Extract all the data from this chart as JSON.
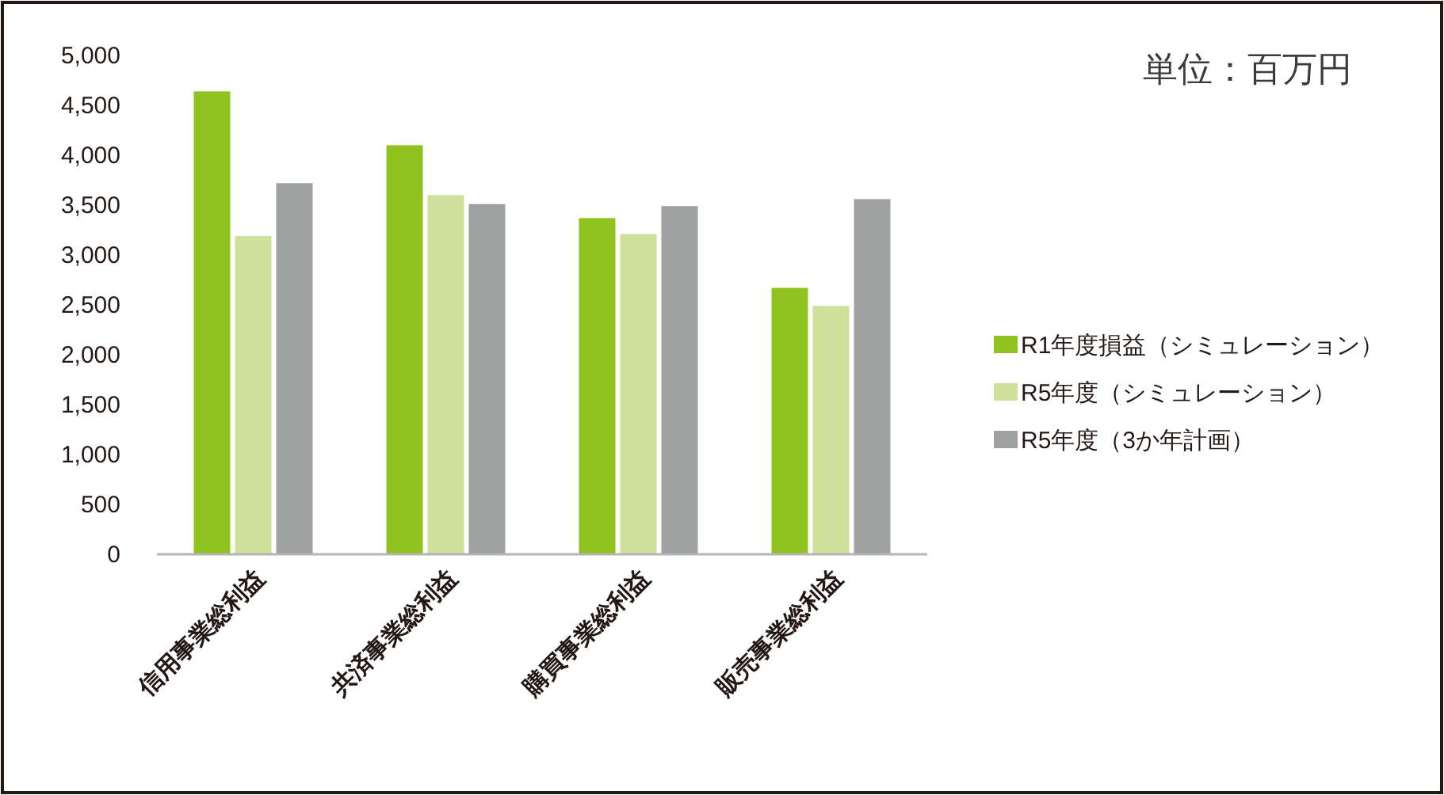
{
  "chart_data": {
    "type": "bar",
    "categories": [
      "信用事業総利益",
      "共済事業総利益",
      "購買事業総利益",
      "販売事業総利益"
    ],
    "series": [
      {
        "name": "R1年度損益（シミュレーション）",
        "color": "#8fc31f",
        "values": [
          4640,
          4100,
          3370,
          2670
        ]
      },
      {
        "name": "R5年度（シミュレーション）",
        "color": "#cde19a",
        "values": [
          3190,
          3600,
          3210,
          2490
        ]
      },
      {
        "name": "R5年度（3か年計画）",
        "color": "#9fa0a0",
        "values": [
          3720,
          3510,
          3490,
          3560
        ]
      }
    ],
    "ylim": [
      0,
      5000
    ],
    "yticks": [
      {
        "value": 0,
        "label": "0"
      },
      {
        "value": 500,
        "label": "500"
      },
      {
        "value": 1000,
        "label": "1,000"
      },
      {
        "value": 1500,
        "label": "1,500"
      },
      {
        "value": 2000,
        "label": "2,000"
      },
      {
        "value": 2500,
        "label": "2,500"
      },
      {
        "value": 3000,
        "label": "3,000"
      },
      {
        "value": 3500,
        "label": "3,500"
      },
      {
        "value": 4000,
        "label": "4,000"
      },
      {
        "value": 4500,
        "label": "4,500"
      },
      {
        "value": 5000,
        "label": "5,000"
      }
    ],
    "annotations": [
      "単位：百万円"
    ],
    "legend": "right",
    "grid": false
  }
}
